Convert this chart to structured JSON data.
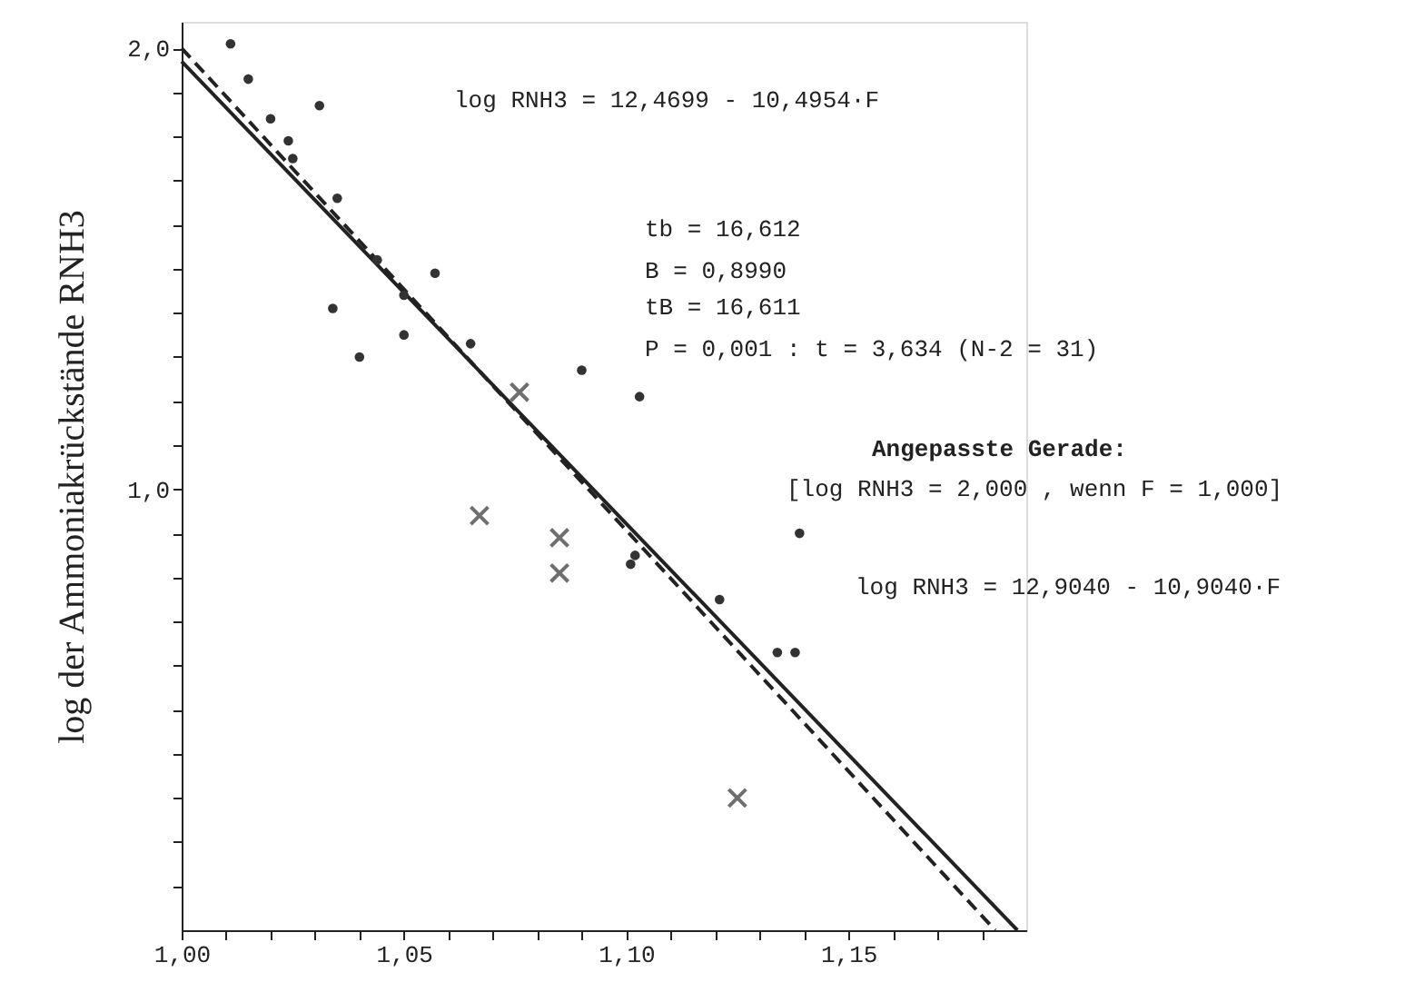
{
  "chart_data": {
    "type": "scatter",
    "ylabel": "log der Ammoniakrückstände RNH3",
    "xlim": [
      1.0,
      1.19
    ],
    "ylim": [
      0,
      2.06
    ],
    "xticks": [
      {
        "value": 1.0,
        "label": "1,00"
      },
      {
        "value": 1.01,
        "label": null
      },
      {
        "value": 1.02,
        "label": null
      },
      {
        "value": 1.03,
        "label": null
      },
      {
        "value": 1.04,
        "label": null
      },
      {
        "value": 1.05,
        "label": "1,05"
      },
      {
        "value": 1.06,
        "label": null
      },
      {
        "value": 1.07,
        "label": null
      },
      {
        "value": 1.08,
        "label": null
      },
      {
        "value": 1.09,
        "label": null
      },
      {
        "value": 1.1,
        "label": "1,10"
      },
      {
        "value": 1.11,
        "label": null
      },
      {
        "value": 1.12,
        "label": null
      },
      {
        "value": 1.13,
        "label": null
      },
      {
        "value": 1.14,
        "label": null
      },
      {
        "value": 1.15,
        "label": "1,15"
      },
      {
        "value": 1.16,
        "label": null
      },
      {
        "value": 1.17,
        "label": null
      },
      {
        "value": 1.18,
        "label": null
      }
    ],
    "yticks": [
      {
        "value": 0.1,
        "label": null
      },
      {
        "value": 0.2,
        "label": null
      },
      {
        "value": 0.3,
        "label": null
      },
      {
        "value": 0.4,
        "label": null
      },
      {
        "value": 0.5,
        "label": null
      },
      {
        "value": 0.6,
        "label": null
      },
      {
        "value": 0.7,
        "label": null
      },
      {
        "value": 0.8,
        "label": null
      },
      {
        "value": 0.9,
        "label": null
      },
      {
        "value": 1.0,
        "label": "1,0"
      },
      {
        "value": 1.1,
        "label": null
      },
      {
        "value": 1.2,
        "label": null
      },
      {
        "value": 1.3,
        "label": null
      },
      {
        "value": 1.4,
        "label": null
      },
      {
        "value": 1.5,
        "label": null
      },
      {
        "value": 1.6,
        "label": null
      },
      {
        "value": 1.7,
        "label": null
      },
      {
        "value": 1.8,
        "label": null
      },
      {
        "value": 1.9,
        "label": null
      },
      {
        "value": 2.0,
        "label": "2,0"
      }
    ],
    "grid": false,
    "series": [
      {
        "type": "scatter",
        "marker": "circle",
        "color": "#333333",
        "x": [
          1.011,
          1.015,
          1.031,
          1.02,
          1.024,
          1.025,
          1.035,
          1.057,
          1.034,
          1.05,
          1.04,
          1.065,
          1.044,
          1.05,
          1.09,
          1.103,
          1.121,
          1.134,
          1.138,
          1.102,
          1.101,
          1.139
        ],
        "values": [
          2.01,
          1.93,
          1.87,
          1.84,
          1.79,
          1.75,
          1.66,
          1.49,
          1.41,
          1.35,
          1.3,
          1.33,
          1.52,
          1.44,
          1.27,
          1.21,
          0.75,
          0.63,
          0.63,
          0.85,
          0.83,
          0.9
        ]
      },
      {
        "type": "scatter",
        "marker": "cross",
        "color": "#333333",
        "x": [
          1.076,
          1.067,
          1.085,
          1.085,
          1.125
        ],
        "values": [
          1.22,
          0.94,
          0.89,
          0.81,
          0.3
        ]
      },
      {
        "type": "line",
        "line_style": "solid",
        "color": "#222222",
        "x": [
          1.0,
          1.188
        ],
        "values": [
          1.97,
          0.0
        ]
      },
      {
        "type": "line",
        "line_style": "dashed",
        "color": "#222222",
        "x": [
          1.0,
          1.183
        ],
        "values": [
          2.0,
          0.0
        ]
      }
    ],
    "annotations": [
      "log RNH3 = 12,4699 - 10,4954·F",
      "tb = 16,612",
      "B = 0,8990",
      "tB = 16,611",
      "P = 0,001 : t = 3,634 (N-2 = 31)",
      "Angepasste Gerade:",
      "[log RNH3 = 2,000 , wenn F = 1,000]",
      "log RNH3 = 12,9040 - 10,9040·F"
    ]
  }
}
